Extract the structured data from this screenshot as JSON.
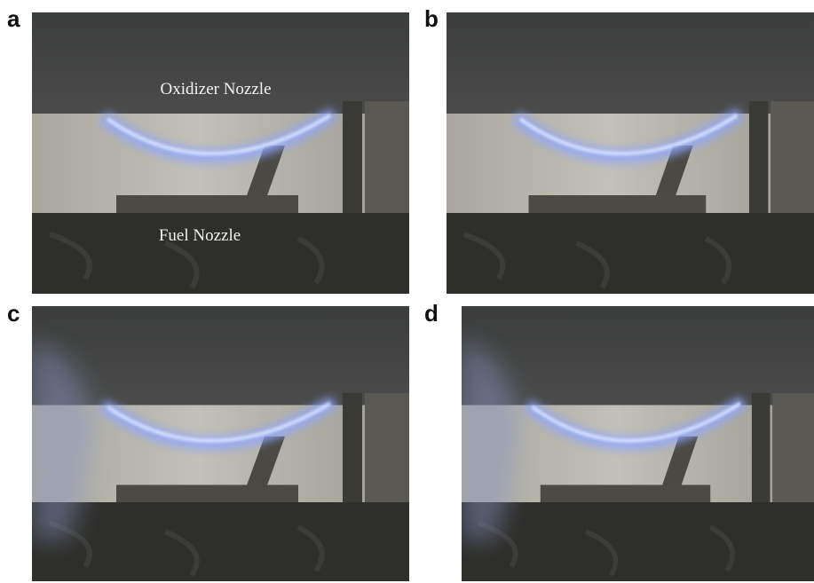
{
  "panels": [
    {
      "label": "a",
      "annotations": [
        "Oxidizer Nozzle",
        "Fuel Nozzle"
      ]
    },
    {
      "label": "b"
    },
    {
      "label": "c"
    },
    {
      "label": "d"
    }
  ]
}
